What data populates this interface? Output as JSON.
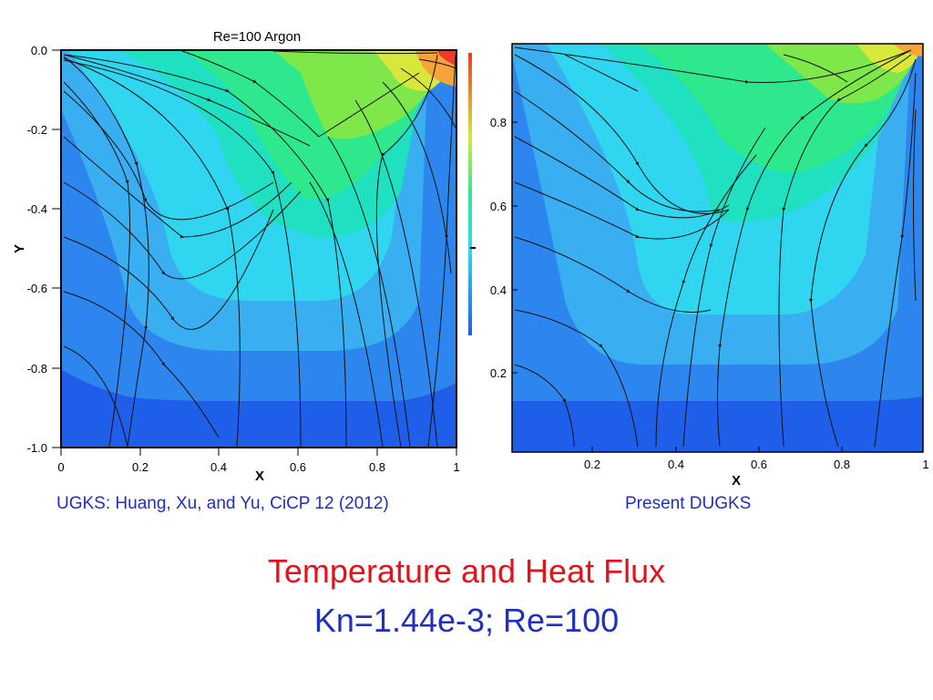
{
  "left_panel": {
    "header": "Re=100    Argon",
    "y_label": "Y",
    "x_label": "X",
    "y_ticks": [
      "0.0",
      "-0.2",
      "-0.4",
      "-0.6",
      "-0.8",
      "-1.0"
    ],
    "x_ticks": [
      "0",
      "0.2",
      "0.4",
      "0.6",
      "0.8",
      "1"
    ],
    "caption": "UGKS: Huang, Xu, and Yu, CiCP 12 (2012)"
  },
  "right_panel": {
    "x_label": "X",
    "y_ticks": [
      "0.8",
      "0.6",
      "0.4",
      "0.2"
    ],
    "x_ticks": [
      "0.2",
      "0.4",
      "0.6",
      "0.8",
      "1"
    ],
    "caption": "Present DUGKS"
  },
  "title": "Temperature and Heat Flux",
  "subtitle": "Kn=1.44e-3; Re=100",
  "colors": {
    "title": "#e0141c",
    "subtitle": "#1f2fbf",
    "caption": "#1f2fbf",
    "contour_levels": [
      "#1e5ee8",
      "#2c86ee",
      "#39aef0",
      "#30d6f0",
      "#1fe0c0",
      "#2ee88e",
      "#7ee84a",
      "#d8e83a",
      "#f6a43a",
      "#ee3a2a"
    ]
  }
}
